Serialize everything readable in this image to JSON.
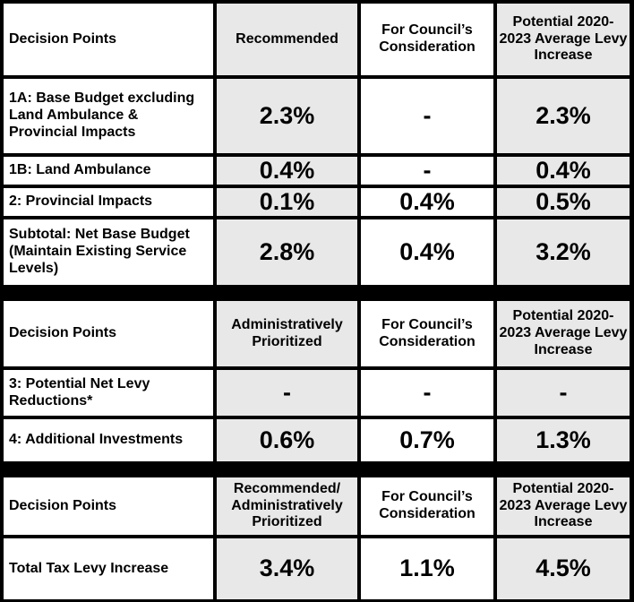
{
  "sections": [
    {
      "header": [
        "Decision Points",
        "Recommended",
        "For Council’s Consideration",
        "Potential 2020-2023 Average Levy Increase"
      ],
      "rows": [
        [
          "1A: Base Budget excluding Land Ambulance & Provincial Impacts",
          "2.3%",
          "-",
          "2.3%"
        ],
        [
          "1B: Land Ambulance",
          "0.4%",
          "-",
          "0.4%"
        ],
        [
          "2: Provincial Impacts",
          "0.1%",
          "0.4%",
          "0.5%"
        ],
        [
          "Subtotal: Net Base Budget (Maintain Existing Service Levels)",
          "2.8%",
          "0.4%",
          "3.2%"
        ]
      ]
    },
    {
      "header": [
        "Decision Points",
        "Administratively Prioritized",
        "For Council’s Consideration",
        "Potential 2020-2023 Average Levy Increase"
      ],
      "rows": [
        [
          "3: Potential Net Levy Reductions*",
          "-",
          "-",
          "-"
        ],
        [
          "4: Additional Investments",
          "0.6%",
          "0.7%",
          "1.3%"
        ]
      ]
    },
    {
      "header": [
        "Decision Points",
        "Recommended/ Administratively Prioritized",
        "For Council’s Consideration",
        "Potential 2020-2023 Average Levy Increase"
      ],
      "rows": [
        [
          "Total Tax Levy Increase",
          "3.4%",
          "1.1%",
          "4.5%"
        ]
      ]
    }
  ],
  "colors": {
    "border": "#000000",
    "shaded": "#e8e8e8",
    "white": "#ffffff"
  }
}
